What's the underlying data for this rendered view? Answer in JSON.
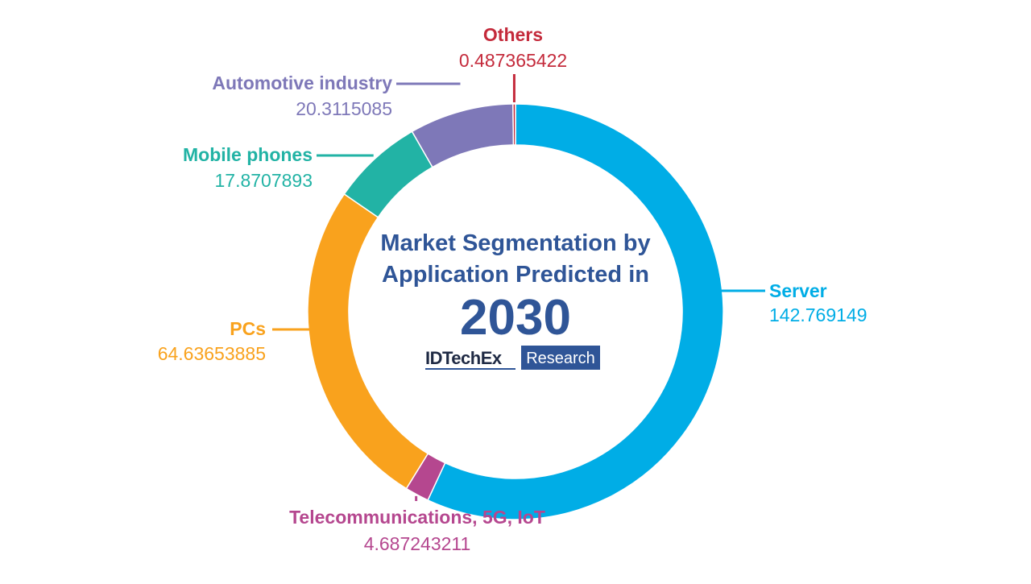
{
  "chart_data": {
    "type": "pie",
    "title_lines": [
      "Market Segmentation by",
      "Application Predicted in"
    ],
    "year": "2030",
    "categories": [
      "Server",
      "Telecommunications, 5G, IoT",
      "PCs",
      "Mobile phones",
      "Automotive industry",
      "Others"
    ],
    "values": [
      142.769149,
      4.687243211,
      64.63653885,
      17.8707893,
      20.3115085,
      0.487365422
    ],
    "value_labels": [
      "142.769149",
      "4.687243211",
      "64.63653885",
      "17.8707893",
      "20.3115085",
      "0.487365422"
    ],
    "colors": [
      "#00ade6",
      "#b5478f",
      "#f9a21d",
      "#22b3a5",
      "#7e78b8",
      "#c42a3b"
    ],
    "donut": true
  },
  "branding": {
    "logo_text": "IDTechEx",
    "logo_box_text": "Research",
    "logo_box_color": "#2f5597"
  }
}
